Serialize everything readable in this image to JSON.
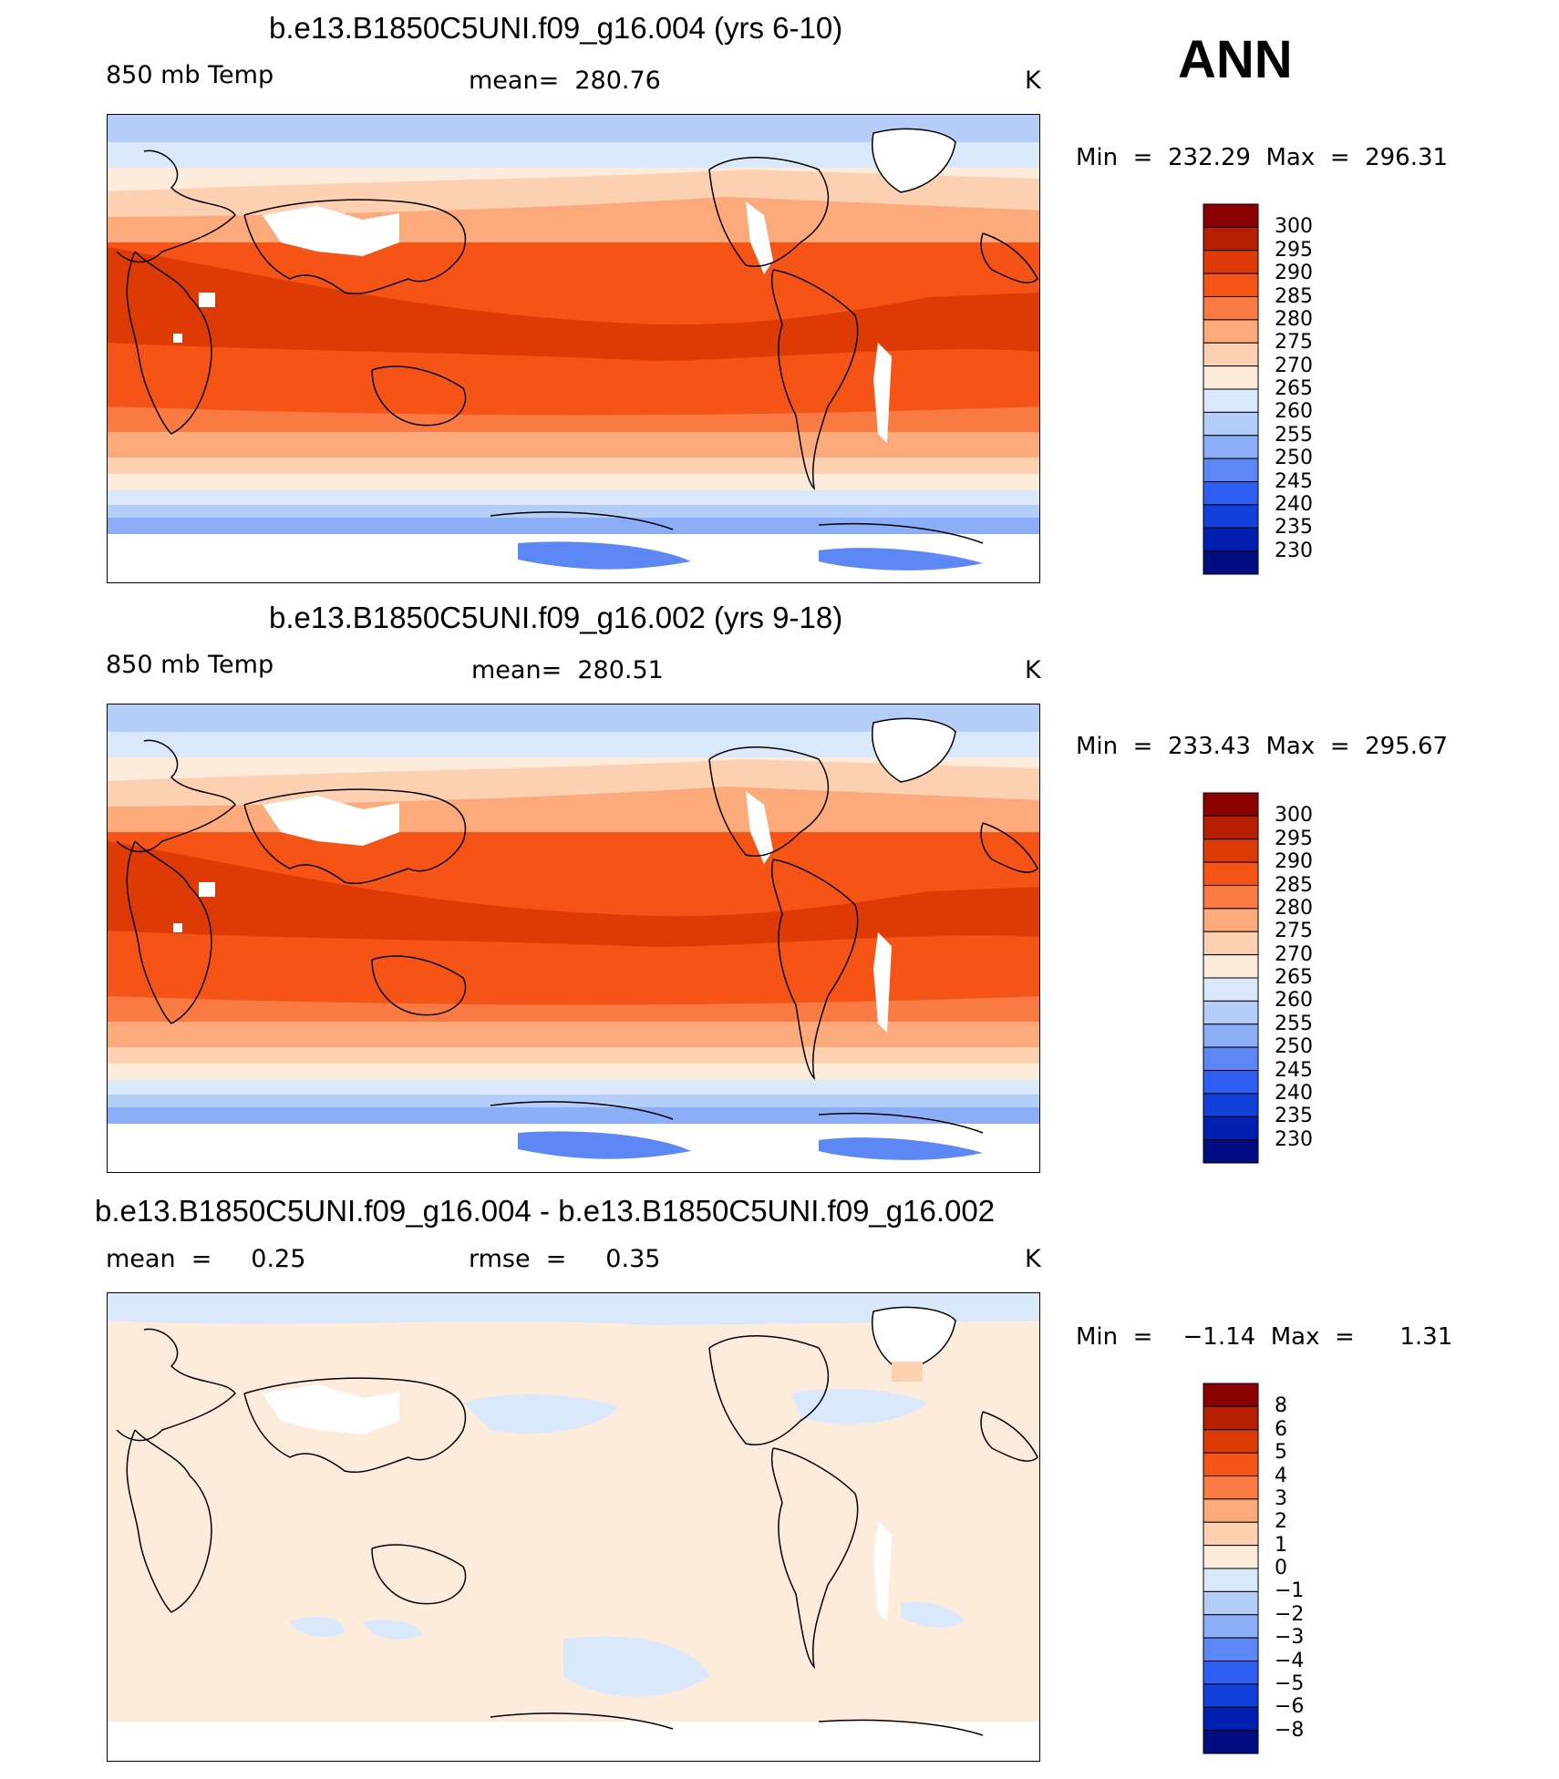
{
  "header": {
    "season": "ANN"
  },
  "panels": [
    {
      "title": "b.e13.B1850C5UNI.f09_g16.004 (yrs 6-10)",
      "left_label": "850 mb Temp",
      "center_label": "mean=  280.76",
      "units": "K",
      "minmax": "Min  =  232.29  Max  =  296.31",
      "kind": "abs",
      "colorbar_labels": [
        "300",
        "295",
        "290",
        "285",
        "280",
        "275",
        "270",
        "265",
        "260",
        "255",
        "250",
        "245",
        "240",
        "235",
        "230"
      ]
    },
    {
      "title": "b.e13.B1850C5UNI.f09_g16.002 (yrs 9-18)",
      "left_label": "850 mb Temp",
      "center_label": "mean=  280.51",
      "units": "K",
      "minmax": "Min  =  233.43  Max  =  295.67",
      "kind": "abs",
      "colorbar_labels": [
        "300",
        "295",
        "290",
        "285",
        "280",
        "275",
        "270",
        "265",
        "260",
        "255",
        "250",
        "245",
        "240",
        "235",
        "230"
      ]
    },
    {
      "title": "b.e13.B1850C5UNI.f09_g16.004 - b.e13.B1850C5UNI.f09_g16.002",
      "left_label": "mean  =     0.25",
      "center_label": "rmse  =     0.35",
      "units": "K",
      "minmax": "Min  =    −1.14  Max  =      1.31",
      "kind": "diff",
      "colorbar_labels": [
        "8",
        "6",
        "5",
        "4",
        "3",
        "2",
        "1",
        "0",
        "−1",
        "−2",
        "−3",
        "−4",
        "−5",
        "−6",
        "−8"
      ]
    }
  ],
  "colorbar_colors": [
    "#8b0000",
    "#b51e00",
    "#de3a06",
    "#f65416",
    "#fa7a44",
    "#fca97c",
    "#fdd0b2",
    "#fdecdc",
    "#d9e8fb",
    "#b4cdf9",
    "#8caef8",
    "#5d87f4",
    "#2f5ff2",
    "#1340da",
    "#001fb1",
    "#000c80"
  ]
}
